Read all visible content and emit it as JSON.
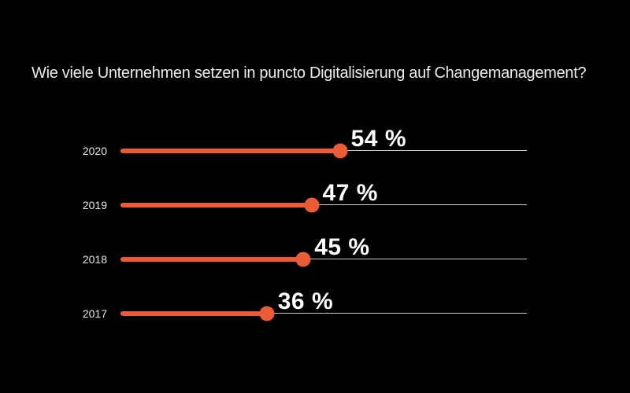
{
  "title": "Wie viele Unternehmen setzen in puncto Digitalisierung auf Changemanagement?",
  "colors": {
    "background": "#000000",
    "accent": "#ea5b37",
    "track": "#cbcbcb",
    "title_text": "#ececec",
    "year_text": "#e6e6e6",
    "value_text": "#ffffff"
  },
  "chart_data": {
    "type": "bar",
    "variant": "horizontal-lollipop",
    "title": "Wie viele Unternehmen setzen in puncto Digitalisierung auf Changemanagement?",
    "categories": [
      "2020",
      "2019",
      "2018",
      "2017"
    ],
    "values": [
      54,
      47,
      45,
      36
    ],
    "value_labels": [
      "54 %",
      "47 %",
      "45 %",
      "36 %"
    ],
    "unit": "%",
    "xlabel": "",
    "ylabel": "",
    "xlim": [
      0,
      100
    ],
    "grid": false,
    "legend": false,
    "background": "dark"
  }
}
